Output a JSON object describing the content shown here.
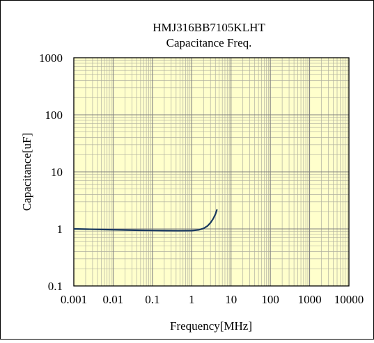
{
  "chart_data": {
    "type": "line",
    "title": "HMJ316BB7105KLHT",
    "subtitle": "Capacitance Freq.",
    "xlabel": "Frequency[MHz]",
    "ylabel": "Capacitance[uF]",
    "x_scale": "log",
    "y_scale": "log",
    "xlim": [
      0.001,
      10000
    ],
    "ylim": [
      0.1,
      1000
    ],
    "x_ticks": [
      "0.001",
      "0.01",
      "0.1",
      "1",
      "10",
      "100",
      "1000",
      "10000"
    ],
    "y_ticks": [
      "0.1",
      "1",
      "10",
      "100",
      "1000"
    ],
    "grid": true,
    "legend": "none",
    "series": [
      {
        "x": [
          0.001,
          0.002,
          0.005,
          0.01,
          0.02,
          0.05,
          0.1,
          0.2,
          0.5,
          1.0,
          1.5,
          2.0,
          2.5,
          3.0,
          3.5,
          4.0,
          4.4
        ],
        "y": [
          1.0,
          0.99,
          0.975,
          0.965,
          0.955,
          0.945,
          0.94,
          0.935,
          0.93,
          0.935,
          0.96,
          1.02,
          1.12,
          1.28,
          1.5,
          1.8,
          2.2
        ]
      }
    ]
  },
  "colors": {
    "plot_background": "#ffffcc",
    "grid_major": "#808080",
    "grid_minor": "#b0b0a0",
    "series_line": "#17375e",
    "frame": "#000000"
  }
}
